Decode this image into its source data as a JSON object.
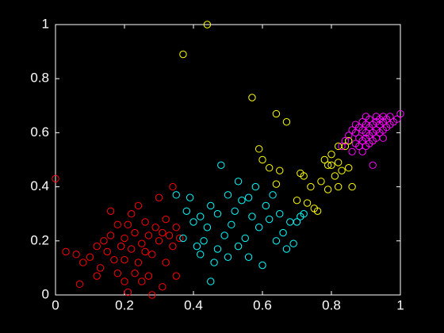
{
  "chart_data": {
    "type": "scatter",
    "background": "#000000",
    "axis_color": "#ffffff",
    "xlim": [
      0,
      1
    ],
    "ylim": [
      0,
      1
    ],
    "xticks": [
      0,
      0.2,
      0.4,
      0.6,
      0.8,
      1
    ],
    "yticks": [
      0,
      0.2,
      0.4,
      0.6,
      0.8,
      1
    ],
    "grid": false,
    "series": [
      {
        "color": "#ff0000",
        "x": [
          0,
          0.03,
          0.06,
          0.07,
          0.08,
          0.1,
          0.12,
          0.13,
          0.14,
          0.15,
          0.16,
          0.17,
          0.18,
          0.19,
          0.2,
          0.2,
          0.21,
          0.22,
          0.22,
          0.23,
          0.24,
          0.24,
          0.25,
          0.26,
          0.27,
          0.27,
          0.28,
          0.29,
          0.3,
          0.3,
          0.31,
          0.32,
          0.32,
          0.33,
          0.34,
          0.34,
          0.35,
          0.35,
          0.36,
          0.18,
          0.25,
          0.28,
          0.12,
          0.16,
          0.21,
          0.26,
          0.31,
          0.2,
          0.23
        ],
        "values": [
          0.43,
          0.16,
          0.15,
          0.04,
          0.12,
          0.14,
          0.18,
          0.1,
          0.2,
          0.16,
          0.22,
          0.13,
          0.26,
          0.18,
          0.05,
          0.21,
          0.01,
          0.17,
          0.3,
          0.23,
          0.12,
          0.33,
          0.19,
          0.27,
          0.07,
          0.22,
          0.15,
          0.25,
          0.2,
          0.36,
          0.23,
          0.28,
          0.12,
          0.22,
          0.4,
          0.18,
          0.07,
          0.25,
          0.21,
          0.08,
          0.05,
          0,
          0.07,
          0.31,
          0.26,
          0.16,
          0.03,
          0.13,
          0.08
        ]
      },
      {
        "color": "#00ffff",
        "x": [
          0.35,
          0.37,
          0.38,
          0.39,
          0.4,
          0.41,
          0.42,
          0.43,
          0.44,
          0.45,
          0.45,
          0.46,
          0.47,
          0.48,
          0.49,
          0.5,
          0.5,
          0.51,
          0.52,
          0.53,
          0.54,
          0.55,
          0.56,
          0.57,
          0.58,
          0.59,
          0.6,
          0.61,
          0.62,
          0.63,
          0.64,
          0.65,
          0.66,
          0.67,
          0.68,
          0.69,
          0.7,
          0.71,
          0.72,
          0.42,
          0.47,
          0.53,
          0.56
        ],
        "values": [
          0.37,
          0.21,
          0.31,
          0.36,
          0.27,
          0.18,
          0.15,
          0.2,
          0.25,
          0.33,
          0.05,
          0.12,
          0.3,
          0.48,
          0.22,
          0.37,
          0.14,
          0.26,
          0.31,
          0.18,
          0.35,
          0.21,
          0.14,
          0.29,
          0.4,
          0.25,
          0.11,
          0.33,
          0.28,
          0.37,
          0.2,
          0.3,
          0.23,
          0.17,
          0.27,
          0.19,
          0.27,
          0.29,
          0.3,
          0.29,
          0.17,
          0.42,
          0.36
        ]
      },
      {
        "color": "#ffff00",
        "x": [
          0.44,
          0.37,
          0.57,
          0.64,
          0.67,
          0.62,
          0.59,
          0.6,
          0.64,
          0.65,
          0.71,
          0.7,
          0.72,
          0.74,
          0.75,
          0.76,
          0.77,
          0.78,
          0.79,
          0.8,
          0.81,
          0.82,
          0.83,
          0.84,
          0.85,
          0.86,
          0.82,
          0.85,
          0.8,
          0.82,
          0.79,
          0.73
        ],
        "values": [
          1,
          0.89,
          0.73,
          0.67,
          0.64,
          0.47,
          0.54,
          0.5,
          0.41,
          0.46,
          0.45,
          0.35,
          0.44,
          0.4,
          0.32,
          0.31,
          0.42,
          0.5,
          0.48,
          0.52,
          0.44,
          0.49,
          0.46,
          0.55,
          0.57,
          0.4,
          0.4,
          0.47,
          0.48,
          0.55,
          0.39,
          0.34
        ]
      },
      {
        "color": "#ff00ff",
        "x": [
          0.83,
          0.84,
          0.85,
          0.86,
          0.86,
          0.87,
          0.87,
          0.88,
          0.88,
          0.88,
          0.89,
          0.89,
          0.89,
          0.9,
          0.9,
          0.9,
          0.9,
          0.91,
          0.91,
          0.91,
          0.92,
          0.92,
          0.92,
          0.93,
          0.93,
          0.93,
          0.94,
          0.94,
          0.94,
          0.95,
          0.95,
          0.95,
          0.96,
          0.96,
          0.97,
          0.97,
          0.98,
          0.99,
          1,
          0.89,
          0.91,
          0.93,
          0.87,
          0.9,
          0.95,
          0.92
        ],
        "values": [
          0.55,
          0.57,
          0.59,
          0.53,
          0.61,
          0.56,
          0.6,
          0.58,
          0.62,
          0.55,
          0.57,
          0.61,
          0.64,
          0.58,
          0.6,
          0.63,
          0.55,
          0.59,
          0.62,
          0.65,
          0.6,
          0.63,
          0.57,
          0.61,
          0.64,
          0.66,
          0.6,
          0.63,
          0.65,
          0.61,
          0.64,
          0.66,
          0.62,
          0.65,
          0.63,
          0.66,
          0.64,
          0.65,
          0.67,
          0.53,
          0.56,
          0.58,
          0.63,
          0.66,
          0.58,
          0.48
        ]
      }
    ]
  }
}
